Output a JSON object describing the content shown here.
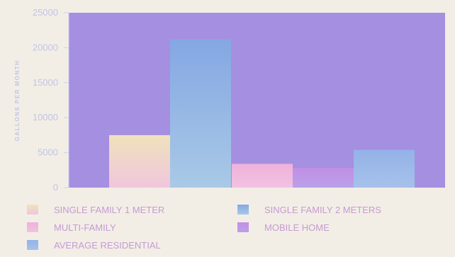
{
  "chart_data": {
    "type": "bar",
    "ylabel": "GALLONS PER MONTH",
    "ylim": [
      0,
      25000
    ],
    "yticks": [
      "0",
      "5000",
      "10000",
      "15000",
      "20000",
      "25000"
    ],
    "grid": false,
    "legend_position": "bottom",
    "plot_background": "#a58fe0",
    "series": [
      {
        "name": "SINGLE FAMILY 1 METER",
        "value": 7500,
        "color": "#efe2bc",
        "color_bottom": "#f0c6dc"
      },
      {
        "name": "SINGLE FAMILY 2 METERS",
        "value": 21200,
        "color": "#84a7e3",
        "color_bottom": "#a9c9e6"
      },
      {
        "name": "MULTI-FAMILY",
        "value": 3400,
        "color": "#efb1da",
        "color_bottom": "#f1c2e1"
      },
      {
        "name": "MOBILE HOME",
        "value": 2800,
        "color": "#c28fe5",
        "color_bottom": "#b9a0e9"
      },
      {
        "name": "AVERAGE RESIDENTIAL",
        "value": 5400,
        "color": "#94b2e8",
        "color_bottom": "#a6c1ea"
      }
    ]
  }
}
